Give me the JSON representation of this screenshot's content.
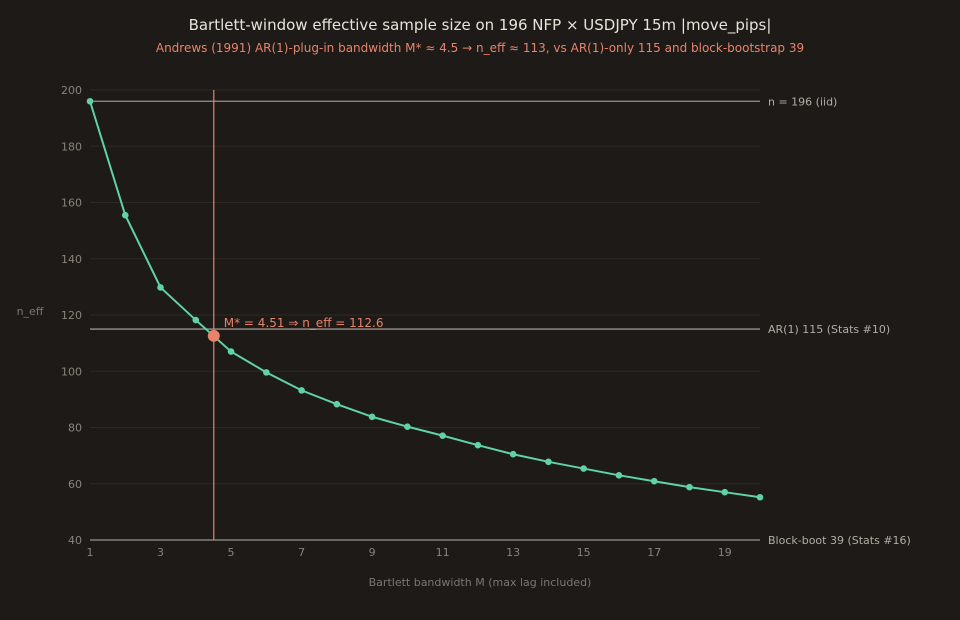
{
  "chart_data": {
    "type": "line",
    "title": "Bartlett-window effective sample size on 196 NFP × USDJPY 15m |move_pips|",
    "subtitle": "Andrews (1991) AR(1)-plug-in bandwidth M* ≈ 4.5 → n_eff ≈ 113, vs AR(1)-only 115 and block-bootstrap 39",
    "xlabel": "Bartlett bandwidth M (max lag included)",
    "ylabel": "n_eff",
    "xlim": [
      1,
      20
    ],
    "ylim": [
      40,
      200
    ],
    "x_ticks": [
      1,
      3,
      5,
      7,
      9,
      11,
      13,
      15,
      17,
      19
    ],
    "y_ticks": [
      40,
      60,
      80,
      100,
      120,
      140,
      160,
      180,
      200
    ],
    "grid": "horizontal",
    "colors": {
      "series": "#5fd3a4",
      "marker": "#e8836b",
      "reference": "#9a938b",
      "vline": "#e8836b"
    },
    "series": [
      {
        "x": [
          1,
          2,
          3,
          4,
          5,
          6,
          7,
          8,
          9,
          10,
          11,
          12,
          13,
          14,
          15,
          16,
          17,
          18,
          19,
          20
        ],
        "values": [
          196,
          155.5,
          129.8,
          118.2,
          107,
          99.6,
          93.2,
          88.3,
          83.8,
          80.3,
          77.1,
          73.7,
          70.5,
          67.8,
          65.4,
          63,
          60.9,
          58.8,
          57,
          55.2
        ]
      }
    ],
    "reference_lines": [
      {
        "y": 196,
        "label": "n = 196 (iid)"
      },
      {
        "y": 115,
        "label": "AR(1) 115 (Stats #10)"
      },
      {
        "y": 39,
        "label": "Block-boot 39 (Stats #16)"
      }
    ],
    "vline": {
      "x": 4.51
    },
    "highlight": {
      "x": 4.51,
      "y": 112.6,
      "label": "M* = 4.51 ⇒ n_eff = 112.6"
    }
  }
}
